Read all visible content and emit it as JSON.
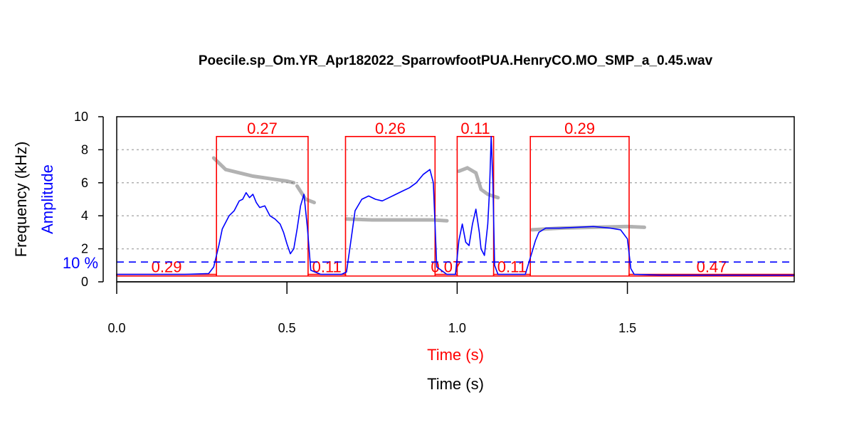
{
  "chart_data": {
    "type": "line",
    "title": "Poecile.sp_Om.YR_Apr182022_SparrowfootPUA.HenryCO.MO_SMP_a_0.45.wav",
    "xlabel_red": "Time (s)",
    "xlabel": "Time (s)",
    "ylabel_freq": "Frequency (kHz)",
    "ylabel_amp": "Amplitude",
    "threshold_label": "10 %",
    "threshold_value": 1.2,
    "xlim": [
      0,
      1.99
    ],
    "ylim": [
      0,
      10
    ],
    "x_ticks": [
      0.0,
      0.5,
      1.0,
      1.5
    ],
    "x_tick_labels": [
      "0.0",
      "0.5",
      "1.0",
      "1.5"
    ],
    "y_ticks": [
      0,
      2,
      4,
      6,
      8,
      10
    ],
    "y_tick_labels": [
      "0",
      "2",
      "4",
      "6",
      "8",
      "10"
    ],
    "grid": "horizontal dotted at 2, 4, 6, 8 kHz",
    "colors": {
      "envelope": "#0000ff",
      "segments": "#ff0000",
      "spectrogram": "#555555",
      "grid": "#b0b0b0"
    },
    "segments": [
      {
        "kind": "gap",
        "start": 0.0,
        "end": 0.293,
        "label": "0.29"
      },
      {
        "kind": "note",
        "start": 0.293,
        "end": 0.562,
        "label": "0.27"
      },
      {
        "kind": "gap",
        "start": 0.562,
        "end": 0.672,
        "label": "0.11"
      },
      {
        "kind": "note",
        "start": 0.672,
        "end": 0.935,
        "label": "0.26"
      },
      {
        "kind": "gap",
        "start": 0.935,
        "end": 1.0,
        "label": "0.07"
      },
      {
        "kind": "note",
        "start": 1.0,
        "end": 1.107,
        "label": "0.11"
      },
      {
        "kind": "gap",
        "start": 1.107,
        "end": 1.215,
        "label": "0.11"
      },
      {
        "kind": "note",
        "start": 1.215,
        "end": 1.505,
        "label": "0.29"
      },
      {
        "kind": "gap",
        "start": 1.505,
        "end": 1.99,
        "label": "0.47"
      }
    ],
    "envelope": {
      "x": [
        0.0,
        0.1,
        0.2,
        0.27,
        0.285,
        0.3,
        0.31,
        0.33,
        0.345,
        0.36,
        0.37,
        0.38,
        0.39,
        0.4,
        0.41,
        0.42,
        0.435,
        0.45,
        0.465,
        0.48,
        0.49,
        0.5,
        0.51,
        0.52,
        0.53,
        0.54,
        0.55,
        0.56,
        0.57,
        0.6,
        0.66,
        0.675,
        0.69,
        0.7,
        0.72,
        0.74,
        0.76,
        0.78,
        0.8,
        0.82,
        0.84,
        0.86,
        0.88,
        0.9,
        0.92,
        0.93,
        0.94,
        0.97,
        0.995,
        1.005,
        1.015,
        1.025,
        1.035,
        1.045,
        1.055,
        1.065,
        1.07,
        1.08,
        1.09,
        1.095,
        1.1,
        1.105,
        1.11,
        1.12,
        1.15,
        1.2,
        1.22,
        1.23,
        1.24,
        1.26,
        1.3,
        1.35,
        1.4,
        1.45,
        1.48,
        1.5,
        1.51,
        1.52,
        1.6,
        1.8,
        1.99
      ],
      "y": [
        0.45,
        0.45,
        0.45,
        0.5,
        0.9,
        2.2,
        3.2,
        4.0,
        4.3,
        4.9,
        5.0,
        5.4,
        5.1,
        5.3,
        4.8,
        4.5,
        4.6,
        4.0,
        3.8,
        3.5,
        3.0,
        2.3,
        1.7,
        2.0,
        3.2,
        4.6,
        5.3,
        3.3,
        0.7,
        0.45,
        0.45,
        0.6,
        2.8,
        4.3,
        5.0,
        5.2,
        5.0,
        4.9,
        5.1,
        5.3,
        5.5,
        5.7,
        6.0,
        6.5,
        6.8,
        6.0,
        0.9,
        0.45,
        0.45,
        2.5,
        3.5,
        2.4,
        2.2,
        3.5,
        4.4,
        3.0,
        2.0,
        1.6,
        3.5,
        5.5,
        8.8,
        6.0,
        1.0,
        0.45,
        0.45,
        0.45,
        1.8,
        2.5,
        3.0,
        3.25,
        3.25,
        3.3,
        3.35,
        3.25,
        3.15,
        2.6,
        0.8,
        0.45,
        0.4,
        0.4,
        0.4
      ]
    }
  }
}
